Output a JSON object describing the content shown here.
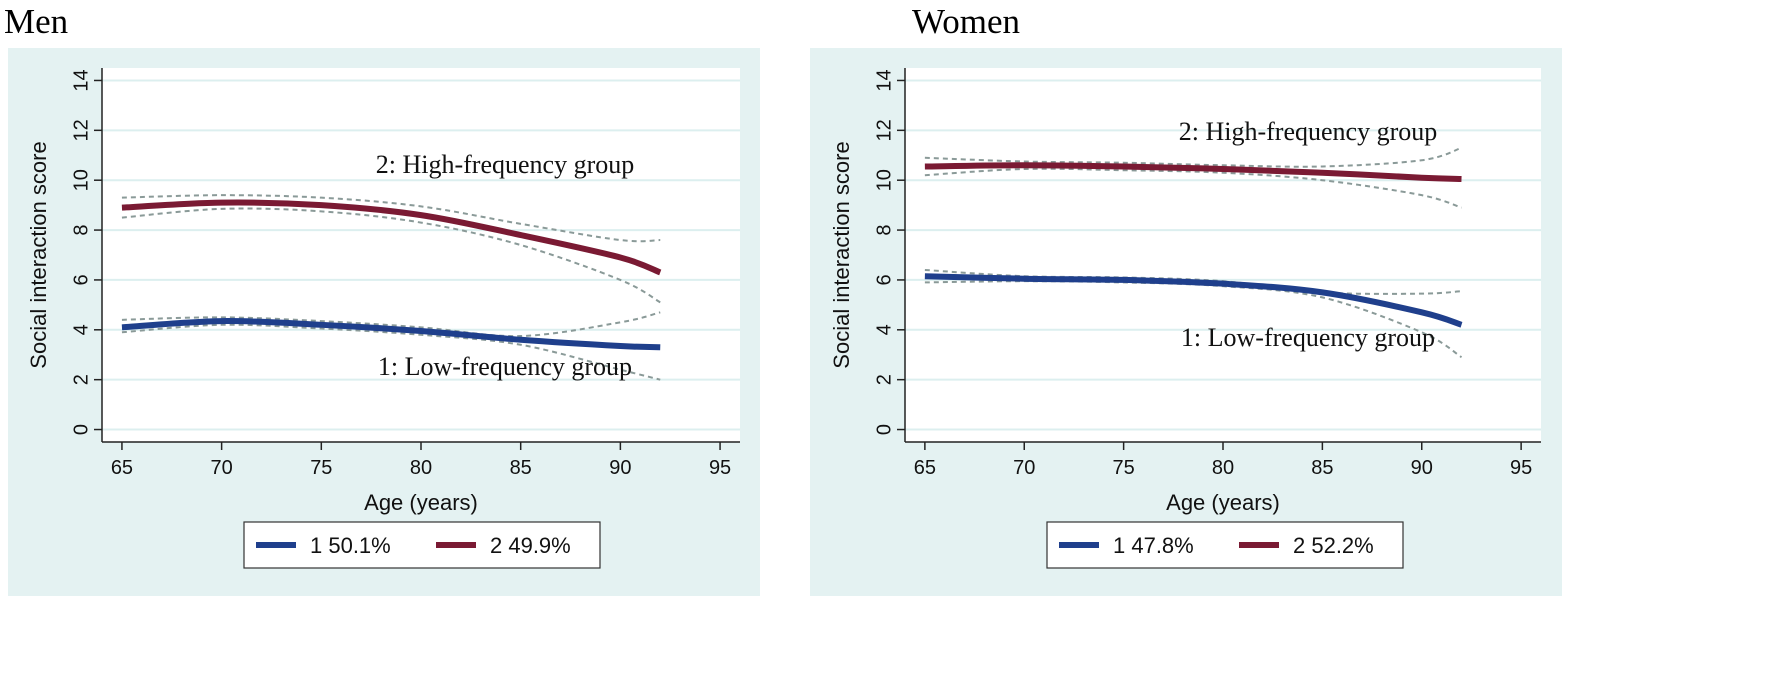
{
  "panels": [
    {
      "title": "Men"
    },
    {
      "title": "Women"
    }
  ],
  "chart_data": [
    {
      "type": "line",
      "title": "Men",
      "xlabel": "Age (years)",
      "ylabel": "Social interaction score",
      "xlim": [
        64,
        96
      ],
      "ylim": [
        -0.5,
        14.5
      ],
      "xticks": [
        65,
        70,
        75,
        80,
        85,
        90,
        95
      ],
      "yticks": [
        0,
        2,
        4,
        6,
        8,
        10,
        12,
        14
      ],
      "grid": true,
      "x": [
        65,
        70,
        75,
        80,
        85,
        90,
        92
      ],
      "series": [
        {
          "name": "1",
          "share": "50.1%",
          "color": "#1f3f8c",
          "label": "1: Low-frequency group",
          "values": [
            4.1,
            4.35,
            4.2,
            3.95,
            3.6,
            3.35,
            3.3
          ],
          "ci_lower": [
            3.9,
            4.2,
            4.05,
            3.8,
            3.4,
            2.4,
            2.0
          ],
          "ci_upper": [
            4.4,
            4.5,
            4.35,
            4.1,
            3.75,
            4.3,
            4.7
          ]
        },
        {
          "name": "2",
          "share": "49.9%",
          "color": "#7a1a33",
          "label": "2: High-frequency group",
          "values": [
            8.9,
            9.1,
            9.0,
            8.6,
            7.8,
            6.9,
            6.3
          ],
          "ci_lower": [
            8.5,
            8.85,
            8.75,
            8.3,
            7.4,
            6.0,
            5.1
          ],
          "ci_upper": [
            9.3,
            9.4,
            9.3,
            8.95,
            8.25,
            7.6,
            7.6
          ]
        }
      ],
      "legend": [
        "1   50.1%",
        "2   49.9%"
      ]
    },
    {
      "type": "line",
      "title": "Women",
      "xlabel": "Age (years)",
      "ylabel": "Social interaction score",
      "xlim": [
        64,
        96
      ],
      "ylim": [
        -0.5,
        14.5
      ],
      "xticks": [
        65,
        70,
        75,
        80,
        85,
        90,
        95
      ],
      "yticks": [
        0,
        2,
        4,
        6,
        8,
        10,
        12,
        14
      ],
      "grid": true,
      "x": [
        65,
        70,
        75,
        80,
        85,
        90,
        92
      ],
      "series": [
        {
          "name": "1",
          "share": "47.8%",
          "color": "#1f3f8c",
          "label": "1: Low-frequency group",
          "values": [
            6.15,
            6.05,
            6.0,
            5.85,
            5.5,
            4.7,
            4.2
          ],
          "ci_lower": [
            5.9,
            5.95,
            5.9,
            5.75,
            5.3,
            3.9,
            2.9
          ],
          "ci_upper": [
            6.4,
            6.15,
            6.1,
            5.95,
            5.5,
            5.45,
            5.55
          ]
        },
        {
          "name": "2",
          "share": "52.2%",
          "color": "#7a1a33",
          "label": "2: High-frequency group",
          "values": [
            10.55,
            10.6,
            10.55,
            10.45,
            10.3,
            10.1,
            10.05
          ],
          "ci_lower": [
            10.2,
            10.45,
            10.4,
            10.3,
            10.0,
            9.4,
            8.9
          ],
          "ci_upper": [
            10.9,
            10.75,
            10.7,
            10.6,
            10.55,
            10.8,
            11.3
          ]
        }
      ],
      "legend": [
        "1   47.8%",
        "2   52.2%"
      ]
    }
  ]
}
